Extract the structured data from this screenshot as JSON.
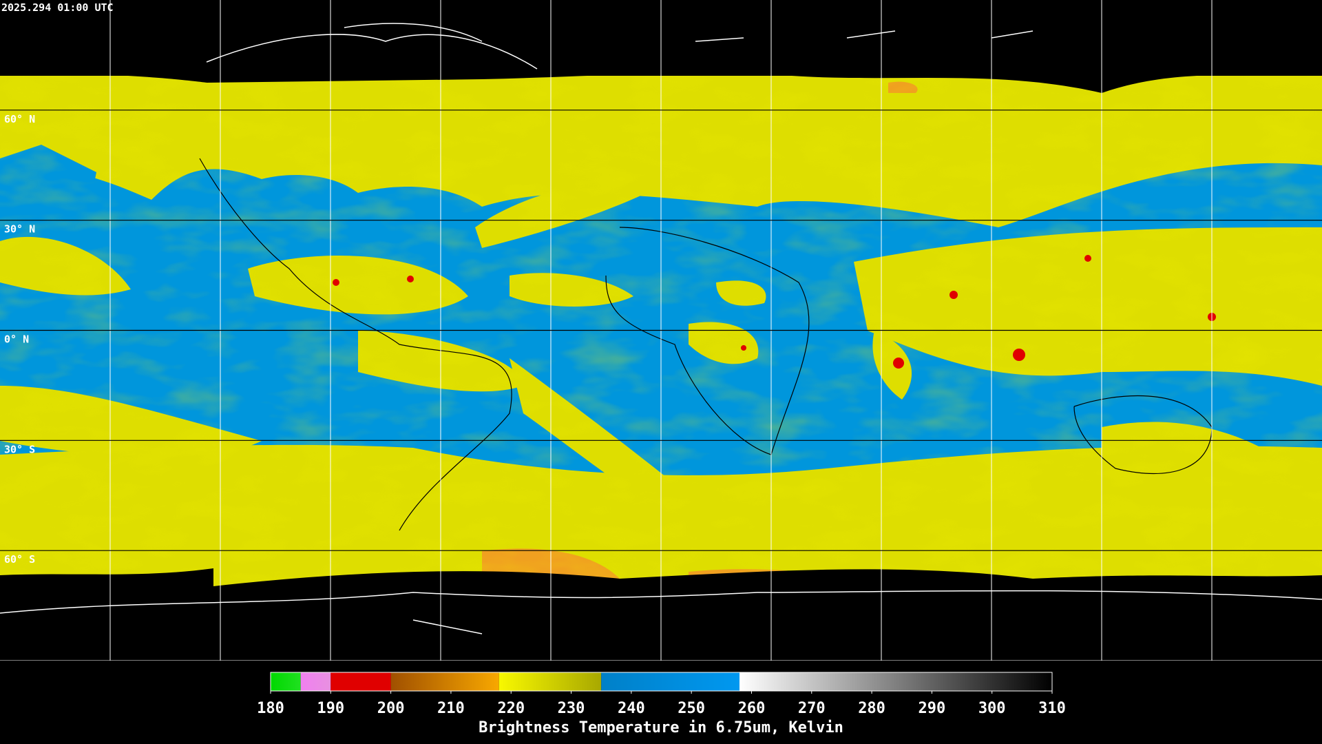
{
  "header": {
    "title": "2025.294 01:00 UTC"
  },
  "map": {
    "lat_labels": [
      {
        "value": 60,
        "label": "60° N"
      },
      {
        "value": 30,
        "label": "30° N"
      },
      {
        "value": 0,
        "label": "0° N"
      },
      {
        "value": -30,
        "label": "30° S"
      },
      {
        "value": -60,
        "label": "60° S"
      }
    ]
  },
  "colorbar": {
    "ticks": [
      180,
      190,
      200,
      210,
      220,
      230,
      240,
      250,
      260,
      270,
      280,
      290,
      300,
      310
    ],
    "segments": [
      {
        "from": 180,
        "to": 185,
        "colors": [
          "#00d800",
          "#20e020"
        ]
      },
      {
        "from": 185,
        "to": 190,
        "colors": [
          "#f080f0",
          "#e890e0"
        ]
      },
      {
        "from": 190,
        "to": 200,
        "colors": [
          "#e00000",
          "#e00000"
        ]
      },
      {
        "from": 200,
        "to": 218,
        "colors": [
          "#a05000",
          "#f8a800"
        ]
      },
      {
        "from": 218,
        "to": 235,
        "colors": [
          "#f8f800",
          "#a8a800"
        ]
      },
      {
        "from": 235,
        "to": 258,
        "colors": [
          "#0080c8",
          "#0098f0"
        ]
      },
      {
        "from": 258,
        "to": 310,
        "colors": [
          "#ffffff",
          "#000000"
        ]
      }
    ],
    "label": "Brightness Temperature in 6.75um, Kelvin"
  }
}
